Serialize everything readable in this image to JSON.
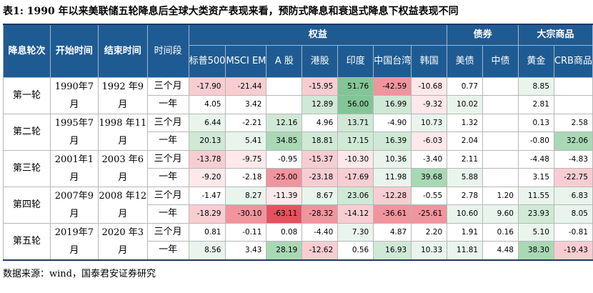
{
  "title": "表1:  1990 年以来美联储五轮降息后全球大类资产表现来看，预防式降息和衰退式降息下权益表现不同",
  "headers": {
    "round": "降息轮次",
    "start": "开始时间",
    "end": "结束时间",
    "period": "时间段",
    "equity": "权益",
    "bond": "债券",
    "commodity": "大宗商品",
    "sp500": "标普500",
    "msci_em": "MSCI EM",
    "a_share": "A 股",
    "hk": "港股",
    "india": "印度",
    "taiwan": "中国台湾",
    "korea": "韩国",
    "us_bond": "美债",
    "cn_bond": "中债",
    "gold": "黄金",
    "crb": "CRB商品"
  },
  "rounds": [
    {
      "round": "第一轮",
      "start": "1990年7月",
      "end": "1992 年9月",
      "rows": [
        {
          "period": "三个月",
          "values": [
            "-17.90",
            "-21.44",
            "",
            "-15.95",
            "51.76",
            "-42.59",
            "-10.68",
            "0.77",
            "",
            "8.85",
            ""
          ]
        },
        {
          "period": "一年",
          "values": [
            "4.05",
            "3.42",
            "",
            "12.89",
            "56.00",
            "16.99",
            "-9.32",
            "10.02",
            "",
            "2.81",
            ""
          ]
        }
      ]
    },
    {
      "round": "第二轮",
      "start": "1995年7月",
      "end": "1998 年11月",
      "rows": [
        {
          "period": "三个月",
          "values": [
            "6.44",
            "-2.21",
            "12.16",
            "4.96",
            "13.71",
            "-4.90",
            "10.73",
            "1.32",
            "",
            "0.13",
            "2.58"
          ]
        },
        {
          "period": "一年",
          "values": [
            "20.13",
            "5.41",
            "34.85",
            "18.81",
            "17.15",
            "16.39",
            "-6.03",
            "2.04",
            "",
            "-0.80",
            "32.06"
          ]
        }
      ]
    },
    {
      "round": "第三轮",
      "start": "2001年1月",
      "end": "2003 年6月",
      "rows": [
        {
          "period": "三个月",
          "values": [
            "-13.78",
            "-9.75",
            "-0.95",
            "-15.37",
            "-10.30",
            "10.36",
            "-3.40",
            "2.11",
            "",
            "-4.48",
            "-4.83"
          ]
        },
        {
          "period": "一年",
          "values": [
            "-9.20",
            "-2.18",
            "-25.00",
            "-23.18",
            "-17.69",
            "11.98",
            "39.68",
            "5.88",
            "",
            "3.15",
            "-22.75"
          ]
        }
      ]
    },
    {
      "round": "第四轮",
      "start": "2007年9月",
      "end": "2008 年12月",
      "rows": [
        {
          "period": "三个月",
          "values": [
            "-1.47",
            "8.27",
            "-11.39",
            "8.67",
            "23.06",
            "-12.28",
            "-0.55",
            "2.78",
            "1.20",
            "11.55",
            "6.83"
          ]
        },
        {
          "period": "一年",
          "values": [
            "-18.29",
            "-30.10",
            "-63.11",
            "-28.32",
            "-14.12",
            "-36.61",
            "-25.61",
            "10.60",
            "9.60",
            "23.93",
            "8.05"
          ]
        }
      ]
    },
    {
      "round": "第五轮",
      "start": "2019年7月",
      "end": "2020 年3月",
      "rows": [
        {
          "period": "三个月",
          "values": [
            "0.81",
            "-0.11",
            "0.08",
            "-4.40",
            "7.30",
            "4.87",
            "2.20",
            "1.91",
            "0.16",
            "5.10",
            "-0.81"
          ]
        },
        {
          "period": "一年",
          "values": [
            "8.56",
            "3.43",
            "28.19",
            "-12.62",
            "0.56",
            "16.93",
            "10.33",
            "11.81",
            "4.48",
            "38.30",
            "-19.43"
          ]
        }
      ]
    }
  ],
  "source": "数据来源：wind，国泰君安证券研究"
}
